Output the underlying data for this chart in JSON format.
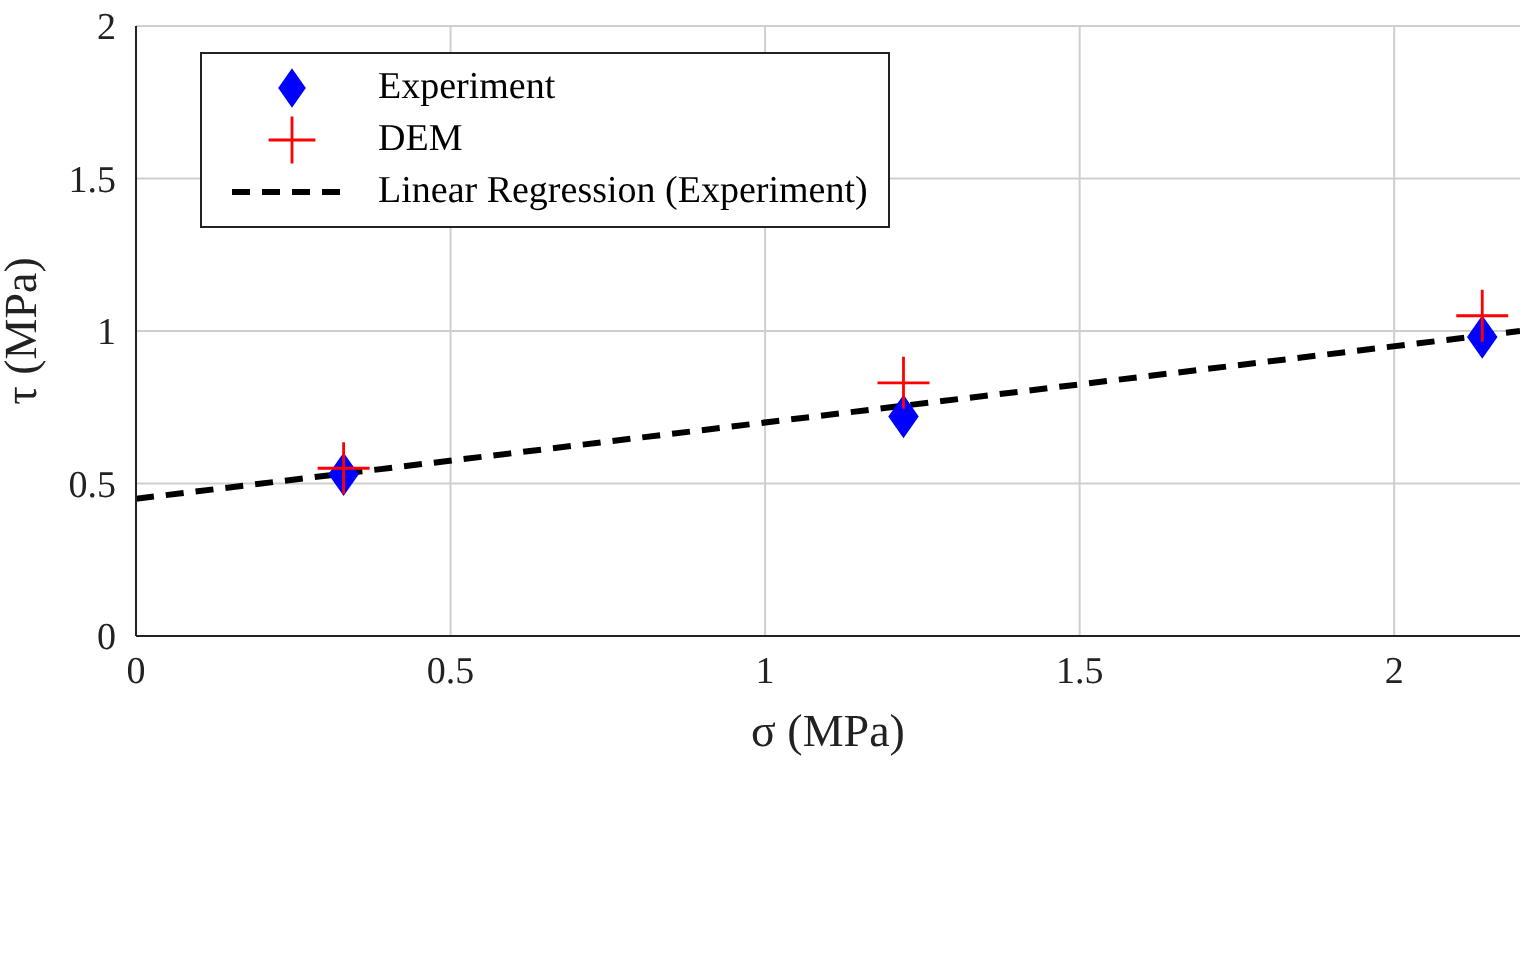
{
  "chart_data": {
    "type": "scatter",
    "xlabel": "σ (MPa)",
    "ylabel": "τ (MPa)",
    "xlim": [
      0,
      2.2
    ],
    "ylim": [
      0,
      2
    ],
    "xticks": [
      0,
      0.5,
      1,
      1.5,
      2
    ],
    "yticks": [
      0,
      0.5,
      1,
      1.5,
      2
    ],
    "grid": true,
    "legend": "top left",
    "series": [
      {
        "name": "Experiment",
        "marker": "diamond",
        "color": "#0000ff",
        "x": [
          0.33,
          1.22,
          2.14
        ],
        "values": [
          0.53,
          0.72,
          0.98
        ]
      },
      {
        "name": "DEM",
        "marker": "cross",
        "color": "#ff0000",
        "x": [
          0.33,
          1.22,
          2.14
        ],
        "values": [
          0.55,
          0.83,
          1.05
        ]
      },
      {
        "name": "Linear Regression (Experiment)",
        "type": "line",
        "marker": "none",
        "line_style": "dashed",
        "color": "#000000",
        "x": [
          0,
          2.2
        ],
        "values": [
          0.45,
          1.0
        ]
      }
    ]
  }
}
